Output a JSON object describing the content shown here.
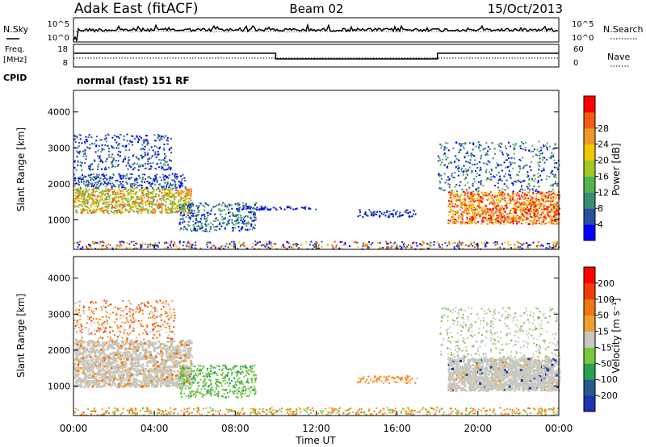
{
  "header": {
    "station": "Adak East (fitACF)",
    "beam": "Beam 02",
    "date": "15/Oct/2013"
  },
  "noise_panel": {
    "left_label": "N.Sky",
    "right_label": "N.Search",
    "left_ticks": [
      "10^5",
      "10^0"
    ],
    "right_ticks": [
      "10^5",
      "10^0"
    ]
  },
  "freq_panel": {
    "left_label_1": "Freq.",
    "left_label_2": "[MHz]",
    "right_label": "Nave",
    "left_ticks": [
      "18",
      "8"
    ],
    "right_ticks": [
      "60",
      "0"
    ]
  },
  "cpid": {
    "label": "CPID",
    "text": "normal (fast) 151 RF"
  },
  "chart_data": [
    {
      "type": "heatmap",
      "panel": "power",
      "ylabel": "Slant Range [km]",
      "ylim": [
        180,
        4600
      ],
      "yticks": [
        "1000",
        "2000",
        "3000",
        "4000"
      ],
      "colorbar_label": "Power [dB]",
      "colorbar_ticks": [
        "4",
        "8",
        "12",
        "16",
        "20",
        "24",
        "28"
      ],
      "colors": [
        "#0000ff",
        "#2850a0",
        "#3c8c78",
        "#50b450",
        "#a0c828",
        "#f0c800",
        "#f09628",
        "#f05a14",
        "#ff0000"
      ]
    },
    {
      "type": "heatmap",
      "panel": "velocity",
      "ylabel": "Slant Range [km]",
      "ylim": [
        180,
        4600
      ],
      "yticks": [
        "1000",
        "2000",
        "3000",
        "4000"
      ],
      "colorbar_label": "Velocity [m s⁻¹]",
      "colorbar_ticks": [
        "200",
        "100",
        "50",
        "15",
        "-15",
        "-50",
        "-100",
        "-200"
      ],
      "colors": [
        "#1e32b4",
        "#285a8c",
        "#28a050",
        "#78c83c",
        "#c8c8c0",
        "#f0a032",
        "#f07814",
        "#f03c0a",
        "#ff0000"
      ]
    }
  ],
  "x_axis": {
    "label": "Time UT",
    "ticks": [
      "00:00",
      "04:00",
      "08:00",
      "12:00",
      "16:00",
      "20:00",
      "00:00"
    ]
  }
}
